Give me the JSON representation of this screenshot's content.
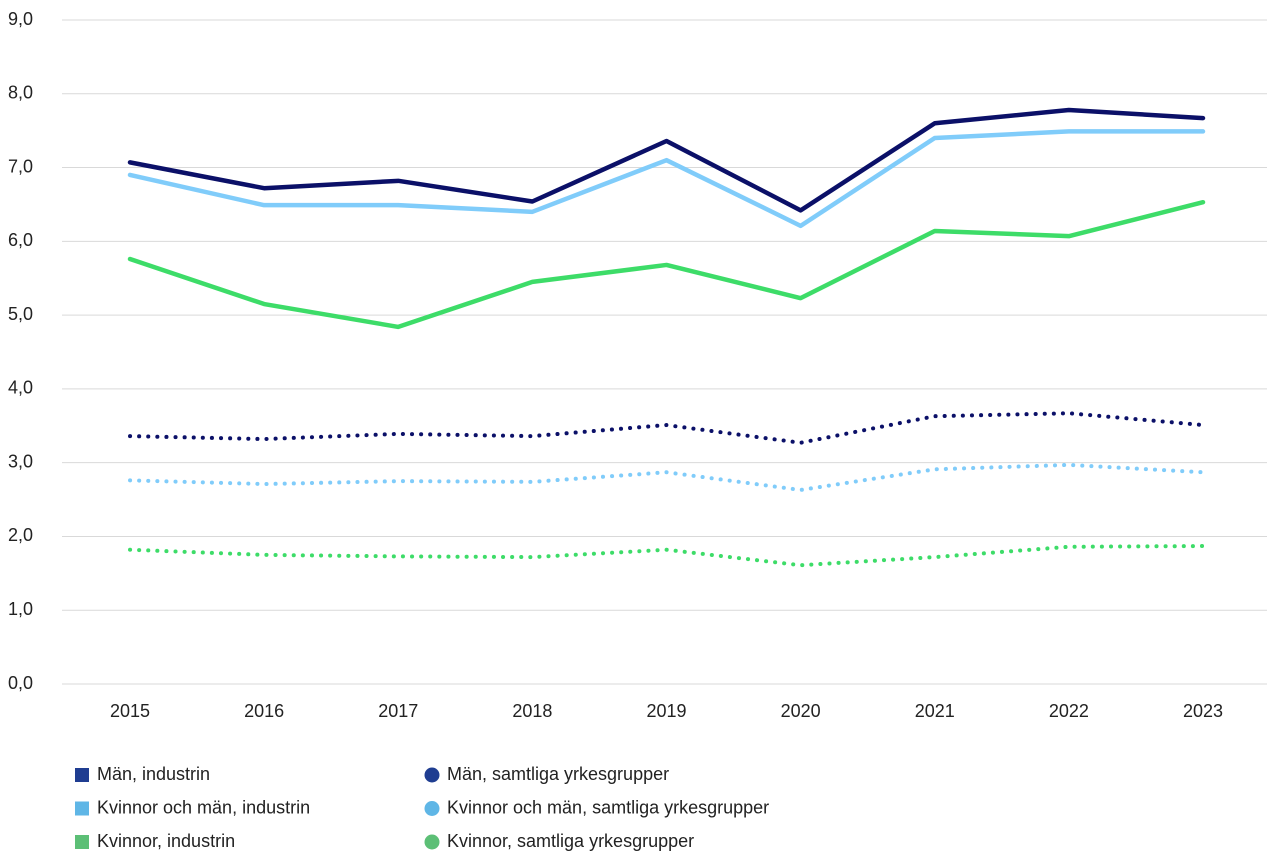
{
  "chart_data": {
    "type": "line",
    "categories": [
      "2015",
      "2016",
      "2017",
      "2018",
      "2019",
      "2020",
      "2021",
      "2022",
      "2023"
    ],
    "ylim": [
      0,
      9
    ],
    "yticks": [
      {
        "value": 0,
        "label": "0,0"
      },
      {
        "value": 1,
        "label": "1,0"
      },
      {
        "value": 2,
        "label": "2,0"
      },
      {
        "value": 3,
        "label": "3,0"
      },
      {
        "value": 4,
        "label": "4,0"
      },
      {
        "value": 5,
        "label": "5,0"
      },
      {
        "value": 6,
        "label": "6,0"
      },
      {
        "value": 7,
        "label": "7,0"
      },
      {
        "value": 8,
        "label": "8,0"
      },
      {
        "value": 9,
        "label": "9,0"
      }
    ],
    "grid": true,
    "legend": "bottom",
    "series": [
      {
        "name": "Män, industrin",
        "color": "#0b1068",
        "legend_color": "#1f3d91",
        "style": "solid",
        "marker": "square",
        "values": [
          7.07,
          6.72,
          6.82,
          6.54,
          7.36,
          6.42,
          7.6,
          7.78,
          7.67
        ]
      },
      {
        "name": "Män, samtliga yrkesgrupper",
        "color": "#0b1068",
        "legend_color": "#1f3d91",
        "style": "dotted",
        "marker": "circle",
        "values": [
          3.36,
          3.32,
          3.39,
          3.36,
          3.51,
          3.27,
          3.63,
          3.67,
          3.51
        ]
      },
      {
        "name": "Kvinnor och män, industrin",
        "color": "#80ccfa",
        "legend_color": "#5fb6e6",
        "style": "solid",
        "marker": "square",
        "values": [
          6.9,
          6.49,
          6.49,
          6.4,
          7.1,
          6.21,
          7.4,
          7.49,
          7.49
        ]
      },
      {
        "name": "Kvinnor och män, samtliga yrkesgrupper",
        "color": "#80ccfa",
        "legend_color": "#5fb6e6",
        "style": "dotted",
        "marker": "circle",
        "values": [
          2.76,
          2.71,
          2.75,
          2.74,
          2.87,
          2.63,
          2.91,
          2.97,
          2.87
        ]
      },
      {
        "name": "Kvinnor, industrin",
        "color": "#3ddc68",
        "legend_color": "#5cbf76",
        "style": "solid",
        "marker": "square",
        "values": [
          5.76,
          5.15,
          4.84,
          5.45,
          5.68,
          5.23,
          6.14,
          6.07,
          6.53
        ]
      },
      {
        "name": "Kvinnor, samtliga yrkesgrupper",
        "color": "#3ddc68",
        "legend_color": "#5cbf76",
        "style": "dotted",
        "marker": "circle",
        "values": [
          1.82,
          1.75,
          1.73,
          1.72,
          1.82,
          1.61,
          1.72,
          1.86,
          1.87
        ]
      }
    ]
  }
}
